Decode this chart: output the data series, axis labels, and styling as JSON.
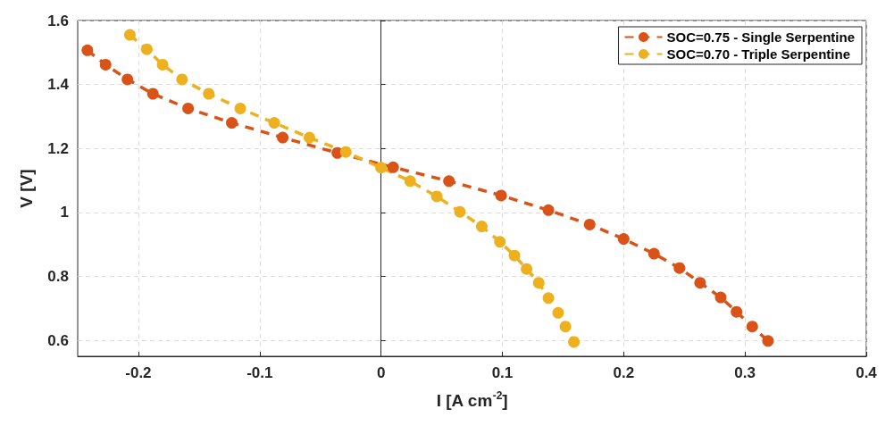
{
  "chart_data": {
    "type": "line",
    "xlabel": "I [A cm$^{-2}$]",
    "ylabel": "V [V]",
    "xlim": [
      -0.25,
      0.4
    ],
    "xticks": [
      -0.2,
      -0.1,
      0,
      0.1,
      0.2,
      0.3,
      0.4
    ],
    "ylim": [
      0.55,
      1.6
    ],
    "yticks": [
      0.6,
      0.8,
      1,
      1.2,
      1.4,
      1.6
    ],
    "grid": true,
    "legend": "top right",
    "marker": "circle",
    "line_style": "dashed",
    "series": [
      {
        "name": "SOC=0.75 - Single Serpentine",
        "color": "#d95319",
        "x": [
          -0.242,
          -0.227,
          -0.209,
          -0.188,
          -0.159,
          -0.123,
          -0.081,
          -0.036,
          0.01,
          0.056,
          0.099,
          0.138,
          0.172,
          0.2,
          0.225,
          0.246,
          0.263,
          0.28,
          0.293,
          0.306,
          0.319
        ],
        "values": [
          1.507,
          1.462,
          1.416,
          1.371,
          1.325,
          1.28,
          1.234,
          1.186,
          1.141,
          1.098,
          1.053,
          1.007,
          0.962,
          0.917,
          0.871,
          0.826,
          0.78,
          0.734,
          0.689,
          0.643,
          0.598
        ]
      },
      {
        "name": "SOC=0.70 - Triple Serpentine",
        "color": "#edb120",
        "x": [
          -0.207,
          -0.193,
          -0.18,
          -0.164,
          -0.142,
          -0.116,
          -0.088,
          -0.059,
          -0.029,
          0.0,
          0.024,
          0.046,
          0.065,
          0.083,
          0.098,
          0.11,
          0.12,
          0.13,
          0.138,
          0.146,
          0.152,
          0.159
        ],
        "values": [
          1.555,
          1.51,
          1.462,
          1.416,
          1.371,
          1.325,
          1.28,
          1.234,
          1.189,
          1.14,
          1.098,
          1.05,
          1.002,
          0.956,
          0.908,
          0.865,
          0.823,
          0.78,
          0.732,
          0.686,
          0.643,
          0.595
        ]
      }
    ]
  }
}
